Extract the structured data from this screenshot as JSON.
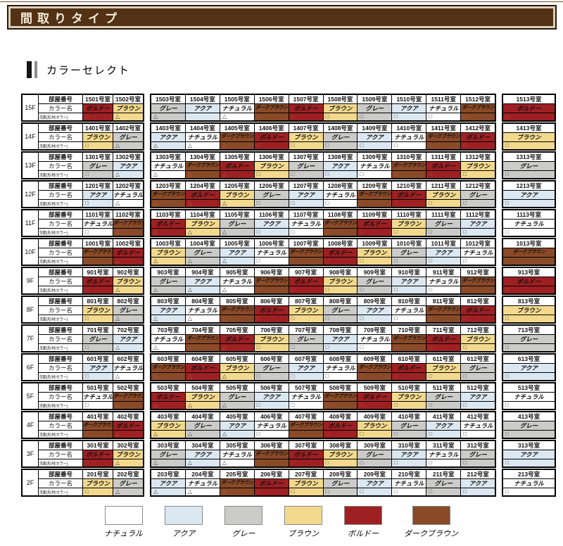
{
  "header": {
    "title": "間取りタイプ"
  },
  "section": {
    "title": "カラーセレクト"
  },
  "palette": {
    "ナチュラル": "#ffffff",
    "アクア": "#dbe7f1",
    "グレー": "#cbcbc9",
    "ブラウン": "#f3d98d",
    "ボルドー": "#9e2023",
    "ダークブラウン": "#8a4a28"
  },
  "dark_colors": [
    "ボルドー",
    "ダークブラウン"
  ],
  "symbol_colors": {
    "on_dark": "#c05a35",
    "on_light": "#444444"
  },
  "table": {
    "row_labels": {
      "room": "部屋番号",
      "color": "カラー名",
      "washstand": "洗面(形/材/カラー)"
    },
    "floors": [
      {
        "label": "15F",
        "rooms": [
          [
            "1501号室",
            "ボルドー",
            "□"
          ],
          [
            "1502号室",
            "ブラウン",
            "△"
          ],
          [
            "1503号室",
            "グレー",
            "△"
          ],
          [
            "1504号室",
            "アクア",
            ""
          ],
          [
            "1505号室",
            "ナチュラル",
            "△"
          ],
          [
            "1506号室",
            "ダークブラウン",
            "□"
          ],
          [
            "1507号室",
            "ボルドー",
            "□"
          ],
          [
            "1508号室",
            "ブラウン",
            "□"
          ],
          [
            "1509号室",
            "グレー",
            "□"
          ],
          [
            "1510号室",
            "アクア",
            "□"
          ],
          [
            "1511号室",
            "ナチュラル",
            "□"
          ],
          [
            "1512号室",
            "ダークブラウン",
            "□"
          ],
          [
            "1513号室",
            "ボルドー",
            "□"
          ]
        ]
      },
      {
        "label": "14F",
        "rooms": [
          [
            "1401号室",
            "ブラウン",
            "□"
          ],
          [
            "1402号室",
            "グレー",
            "△"
          ],
          [
            "1403号室",
            "アクア",
            "△"
          ],
          [
            "1404号室",
            "ナチュラル",
            "△"
          ],
          [
            "1405号室",
            "ダークブラウン",
            "△"
          ],
          [
            "1406号室",
            "ボルドー",
            "□"
          ],
          [
            "1407号室",
            "ブラウン",
            "□"
          ],
          [
            "1408号室",
            "グレー",
            "□"
          ],
          [
            "1409号室",
            "アクア",
            "□"
          ],
          [
            "1410号室",
            "ナチュラル",
            "□"
          ],
          [
            "1411号室",
            "ダークブラウン",
            "□"
          ],
          [
            "1412号室",
            "ボルドー",
            "□"
          ],
          [
            "1413号室",
            "ブラウン",
            "□"
          ]
        ]
      },
      {
        "label": "13F",
        "rooms": [
          [
            "1301号室",
            "グレー",
            "□"
          ],
          [
            "1302号室",
            "アクア",
            "△"
          ],
          [
            "1303号室",
            "ナチュラル",
            "△"
          ],
          [
            "1304号室",
            "ダークブラウン",
            "△"
          ],
          [
            "1305号室",
            "ボルドー",
            "△"
          ],
          [
            "1306号室",
            "ブラウン",
            "□"
          ],
          [
            "1307号室",
            "グレー",
            "□"
          ],
          [
            "1308号室",
            "アクア",
            "□"
          ],
          [
            "1309号室",
            "ナチュラル",
            "□"
          ],
          [
            "1310号室",
            "ダークブラウン",
            "□"
          ],
          [
            "1311号室",
            "ボルドー",
            "□"
          ],
          [
            "1312号室",
            "ブラウン",
            "□"
          ],
          [
            "1313号室",
            "グレー",
            "□"
          ]
        ]
      },
      {
        "label": "12F",
        "rooms": [
          [
            "1201号室",
            "アクア",
            "□"
          ],
          [
            "1202号室",
            "ナチュラル",
            "△"
          ],
          [
            "1203号室",
            "ダークブラウン",
            "△"
          ],
          [
            "1204号室",
            "ボルドー",
            "△"
          ],
          [
            "1205号室",
            "ブラウン",
            "△"
          ],
          [
            "1206号室",
            "グレー",
            "□"
          ],
          [
            "1207号室",
            "アクア",
            "□"
          ],
          [
            "1208号室",
            "ナチュラル",
            "□"
          ],
          [
            "1209号室",
            "ダークブラウン",
            "□"
          ],
          [
            "1210号室",
            "ボルドー",
            "□"
          ],
          [
            "1211号室",
            "ブラウン",
            "□"
          ],
          [
            "1212号室",
            "グレー",
            "□"
          ],
          [
            "1213号室",
            "アクア",
            "□"
          ]
        ]
      },
      {
        "label": "11F",
        "rooms": [
          [
            "1101号室",
            "ナチュラル",
            "□"
          ],
          [
            "1102号室",
            "ダークブラウン",
            "△"
          ],
          [
            "1103号室",
            "ボルドー",
            "△"
          ],
          [
            "1104号室",
            "ブラウン",
            "△"
          ],
          [
            "1105号室",
            "グレー",
            "△"
          ],
          [
            "1106号室",
            "アクア",
            "□"
          ],
          [
            "1107号室",
            "ナチュラル",
            "□"
          ],
          [
            "1108号室",
            "ダークブラウン",
            "□"
          ],
          [
            "1109号室",
            "ボルドー",
            "□"
          ],
          [
            "1110号室",
            "ブラウン",
            "□"
          ],
          [
            "1111号室",
            "グレー",
            "□"
          ],
          [
            "1112号室",
            "アクア",
            "□"
          ],
          [
            "1113号室",
            "ナチュラル",
            "□"
          ]
        ]
      },
      {
        "label": "10F",
        "rooms": [
          [
            "1001号室",
            "ダークブラウン",
            "□"
          ],
          [
            "1002号室",
            "ボルドー",
            "△"
          ],
          [
            "1003号室",
            "ブラウン",
            "△"
          ],
          [
            "1004号室",
            "グレー",
            "△"
          ],
          [
            "1005号室",
            "アクア",
            "△"
          ],
          [
            "1006号室",
            "ナチュラル",
            "□"
          ],
          [
            "1007号室",
            "ダークブラウン",
            "□"
          ],
          [
            "1008号室",
            "ボルドー",
            "□"
          ],
          [
            "1009号室",
            "ブラウン",
            "□"
          ],
          [
            "1010号室",
            "グレー",
            "□"
          ],
          [
            "1011号室",
            "アクア",
            "□"
          ],
          [
            "1012号室",
            "ナチュラル",
            "□"
          ],
          [
            "1013号室",
            "ダークブラウン",
            "□"
          ]
        ]
      },
      {
        "label": "9F",
        "rooms": [
          [
            "901号室",
            "ボルドー",
            "□"
          ],
          [
            "902号室",
            "ブラウン",
            "△"
          ],
          [
            "903号室",
            "グレー",
            "△"
          ],
          [
            "904号室",
            "アクア",
            "△"
          ],
          [
            "905号室",
            "ナチュラル",
            "△"
          ],
          [
            "906号室",
            "ダークブラウン",
            "□"
          ],
          [
            "907号室",
            "ボルドー",
            "□"
          ],
          [
            "908号室",
            "ブラウン",
            "□"
          ],
          [
            "909号室",
            "グレー",
            "□"
          ],
          [
            "910号室",
            "アクア",
            "□"
          ],
          [
            "911号室",
            "ナチュラル",
            "□"
          ],
          [
            "912号室",
            "ダークブラウン",
            "□"
          ],
          [
            "913号室",
            "ボルドー",
            "□"
          ]
        ]
      },
      {
        "label": "8F",
        "rooms": [
          [
            "801号室",
            "ブラウン",
            "□"
          ],
          [
            "802号室",
            "グレー",
            "△"
          ],
          [
            "803号室",
            "アクア",
            "△"
          ],
          [
            "804号室",
            "ナチュラル",
            "△"
          ],
          [
            "805号室",
            "ダークブラウン",
            "△"
          ],
          [
            "806号室",
            "ボルドー",
            "□"
          ],
          [
            "807号室",
            "ブラウン",
            "□"
          ],
          [
            "808号室",
            "グレー",
            "□"
          ],
          [
            "809号室",
            "アクア",
            "□"
          ],
          [
            "810号室",
            "ナチュラル",
            "□"
          ],
          [
            "811号室",
            "ダークブラウン",
            "□"
          ],
          [
            "812号室",
            "ボルドー",
            "□"
          ],
          [
            "813号室",
            "ブラウン",
            "□"
          ]
        ]
      },
      {
        "label": "7F",
        "rooms": [
          [
            "701号室",
            "グレー",
            "□"
          ],
          [
            "702号室",
            "アクア",
            "△"
          ],
          [
            "703号室",
            "ナチュラル",
            "△"
          ],
          [
            "704号室",
            "ダークブラウン",
            "△"
          ],
          [
            "705号室",
            "ボルドー",
            "△"
          ],
          [
            "706号室",
            "ブラウン",
            "□"
          ],
          [
            "707号室",
            "グレー",
            "□"
          ],
          [
            "708号室",
            "アクア",
            "□"
          ],
          [
            "709号室",
            "ナチュラル",
            "□"
          ],
          [
            "710号室",
            "ダークブラウン",
            "□"
          ],
          [
            "711号室",
            "ボルドー",
            "□"
          ],
          [
            "712号室",
            "ブラウン",
            "□"
          ],
          [
            "713号室",
            "グレー",
            "□"
          ]
        ]
      },
      {
        "label": "6F",
        "rooms": [
          [
            "601号室",
            "アクア",
            "□"
          ],
          [
            "602号室",
            "ナチュラル",
            "△"
          ],
          [
            "603号室",
            "ダークブラウン",
            "△"
          ],
          [
            "604号室",
            "ボルドー",
            "△"
          ],
          [
            "605号室",
            "ブラウン",
            "△"
          ],
          [
            "606号室",
            "グレー",
            "□"
          ],
          [
            "607号室",
            "アクア",
            "□"
          ],
          [
            "608号室",
            "ナチュラル",
            "□"
          ],
          [
            "609号室",
            "ダークブラウン",
            "□"
          ],
          [
            "610号室",
            "ボルドー",
            "□"
          ],
          [
            "611号室",
            "ブラウン",
            "□"
          ],
          [
            "612号室",
            "グレー",
            "□"
          ],
          [
            "613号室",
            "アクア",
            "□"
          ]
        ]
      },
      {
        "label": "5F",
        "rooms": [
          [
            "501号室",
            "ナチュラル",
            "□"
          ],
          [
            "502号室",
            "ダークブラウン",
            "△"
          ],
          [
            "503号室",
            "ボルドー",
            "△"
          ],
          [
            "504号室",
            "ブラウン",
            "△"
          ],
          [
            "505号室",
            "グレー",
            "△"
          ],
          [
            "506号室",
            "アクア",
            "□"
          ],
          [
            "507号室",
            "ナチュラル",
            "□"
          ],
          [
            "508号室",
            "ダークブラウン",
            "□"
          ],
          [
            "509号室",
            "ボルドー",
            "□"
          ],
          [
            "510号室",
            "ブラウン",
            "□"
          ],
          [
            "511号室",
            "グレー",
            "□"
          ],
          [
            "512号室",
            "アクア",
            "□"
          ],
          [
            "513号室",
            "ナチュラル",
            "□"
          ]
        ]
      },
      {
        "label": "4F",
        "rooms": [
          [
            "401号室",
            "ダークブラウン",
            "□"
          ],
          [
            "402号室",
            "ボルドー",
            "△"
          ],
          [
            "403号室",
            "ブラウン",
            "△"
          ],
          [
            "404号室",
            "グレー",
            "△"
          ],
          [
            "405号室",
            "アクア",
            "△"
          ],
          [
            "406号室",
            "ナチュラル",
            "□"
          ],
          [
            "407号室",
            "ダークブラウン",
            "□"
          ],
          [
            "408号室",
            "ボルドー",
            "□"
          ],
          [
            "409号室",
            "ブラウン",
            "□"
          ],
          [
            "410号室",
            "グレー",
            "□"
          ],
          [
            "411号室",
            "アクア",
            "□"
          ],
          [
            "412号室",
            "ナチュラル",
            "□"
          ],
          [
            "413号室",
            "グレー",
            "□"
          ]
        ]
      },
      {
        "label": "3F",
        "rooms": [
          [
            "301号室",
            "ボルドー",
            "□"
          ],
          [
            "302号室",
            "ブラウン",
            "△"
          ],
          [
            "303号室",
            "グレー",
            "△"
          ],
          [
            "304号室",
            "アクア",
            "△"
          ],
          [
            "305号室",
            "ナチュラル",
            "△"
          ],
          [
            "306号室",
            "ダークブラウン",
            "□"
          ],
          [
            "307号室",
            "ボルドー",
            "□"
          ],
          [
            "308号室",
            "ブラウン",
            "□"
          ],
          [
            "309号室",
            "グレー",
            "□"
          ],
          [
            "310号室",
            "アクア",
            "□"
          ],
          [
            "311号室",
            "ナチュラル",
            "□"
          ],
          [
            "312号室",
            "グレー",
            "□"
          ],
          [
            "313号室",
            "アクア",
            "□"
          ]
        ]
      },
      {
        "label": "2F",
        "rooms": [
          [
            "201号室",
            "ブラウン",
            "□"
          ],
          [
            "202号室",
            "グレー",
            "△"
          ],
          [
            "203号室",
            "アクア",
            "△"
          ],
          [
            "204号室",
            "ナチュラル",
            "△"
          ],
          [
            "205号室",
            "ダークブラウン",
            "△"
          ],
          [
            "206号室",
            "ボルドー",
            "□"
          ],
          [
            "207号室",
            "ブラウン",
            "□"
          ],
          [
            "208号室",
            "グレー",
            "□"
          ],
          [
            "209号室",
            "アクア",
            "□"
          ],
          [
            "210号室",
            "ナチュラル",
            "□"
          ],
          [
            "211号室",
            "グレー",
            "□"
          ],
          [
            "212号室",
            "アクア",
            "□"
          ],
          [
            "213号室",
            "ナチュラル",
            "□"
          ]
        ]
      }
    ]
  },
  "legend": [
    {
      "label": "ナチュラル",
      "color": "#ffffff"
    },
    {
      "label": "アクア",
      "color": "#dbe7f1"
    },
    {
      "label": "グレー",
      "color": "#cbcbc9"
    },
    {
      "label": "ブラウン",
      "color": "#f3d98d"
    },
    {
      "label": "ボルドー",
      "color": "#9e2023"
    },
    {
      "label": "ダークブラウン",
      "color": "#8a4a28"
    }
  ]
}
